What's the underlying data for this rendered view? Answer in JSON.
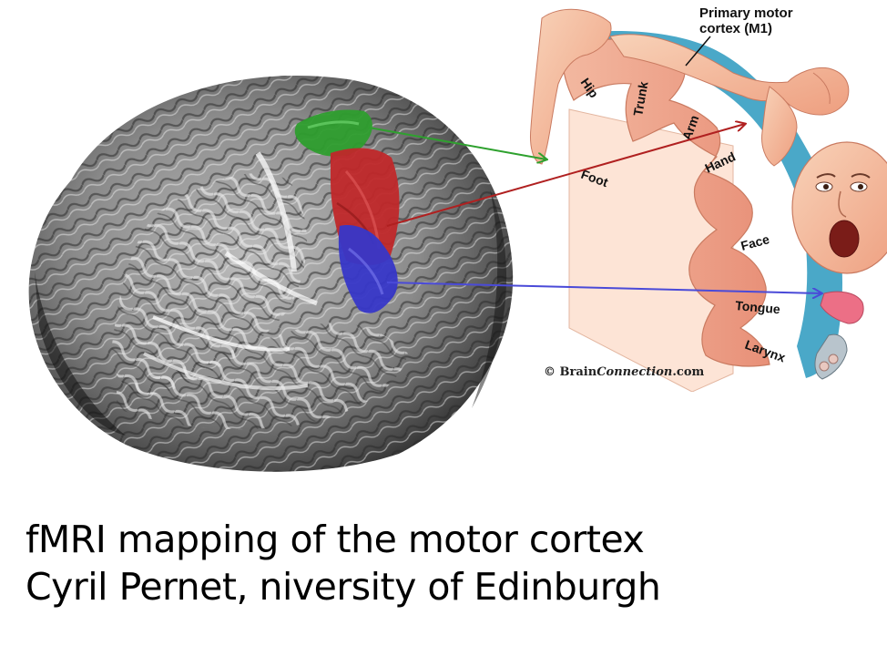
{
  "caption": {
    "line1": "fMRI mapping of the motor cortex",
    "line2": "Cyril Pernet, niversity of Edinburgh"
  },
  "homunculus": {
    "title_line1": "Primary motor",
    "title_line2": "cortex (M1)",
    "labels": {
      "hip": "Hip",
      "trunk": "Trunk",
      "arm": "Arm",
      "hand": "Hand",
      "foot": "Foot",
      "face": "Face",
      "tongue": "Tongue",
      "larynx": "Larynx"
    },
    "copyright_symbol": "©",
    "copyright_brand": "Brain",
    "copyright_brand_italic": "Connection",
    "copyright_suffix": ".com"
  },
  "colors": {
    "foot_region": "#2e9e2e",
    "hand_region": "#c0282a",
    "tongue_region": "#3737c8",
    "arrow_green": "#2ea12e",
    "arrow_red": "#b02020",
    "arrow_blue": "#4a4ad8",
    "cortex_blue": "#4aa8c8",
    "cortex_skin": "#f4c4a8"
  }
}
